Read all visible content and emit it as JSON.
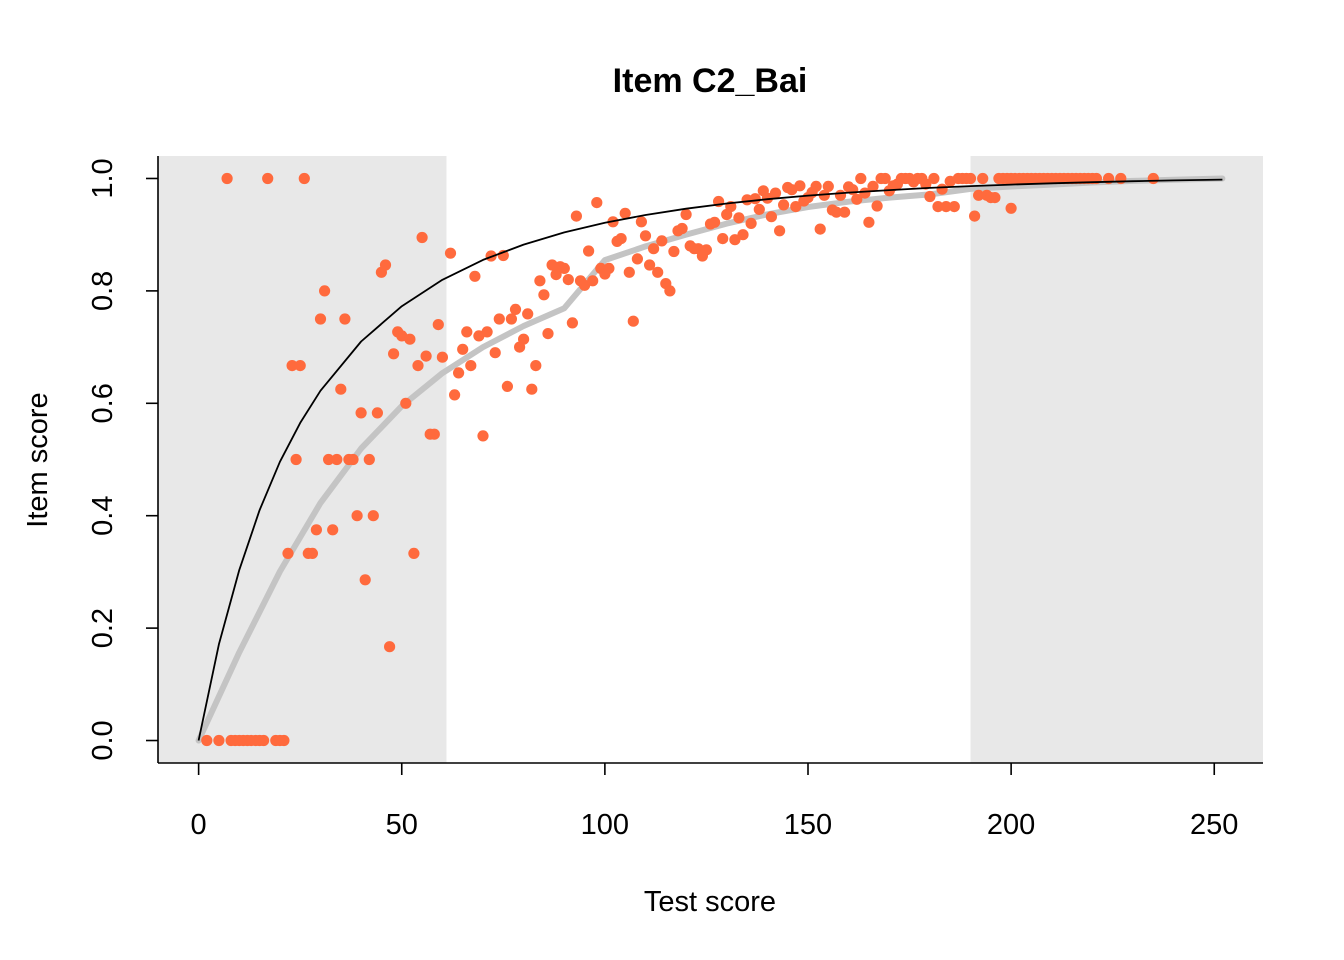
{
  "chart_data": {
    "type": "scatter",
    "title": "Item C2_Bai",
    "xlabel": "Test score",
    "ylabel": "Item score",
    "xlim": [
      -10,
      262
    ],
    "ylim": [
      -0.04,
      1.04
    ],
    "x_ticks": [
      0,
      50,
      100,
      150,
      200,
      250
    ],
    "y_ticks": [
      0.0,
      0.2,
      0.4,
      0.6,
      0.8,
      1.0
    ],
    "x_tick_labels": [
      "0",
      "50",
      "100",
      "150",
      "200",
      "250"
    ],
    "y_tick_labels": [
      "0.0",
      "0.2",
      "0.4",
      "0.6",
      "0.8",
      "1.0"
    ],
    "shaded_ranges_x": [
      [
        -10,
        61
      ],
      [
        190,
        262
      ]
    ],
    "colors": {
      "points": "#FF6A3D",
      "shade": "#E8E8E8",
      "smooth": "#C4C4C4",
      "model": "#000000"
    },
    "points": [
      [
        2,
        0
      ],
      [
        5,
        0
      ],
      [
        8,
        0
      ],
      [
        9,
        0
      ],
      [
        10,
        0
      ],
      [
        11,
        0
      ],
      [
        12,
        0
      ],
      [
        13,
        0
      ],
      [
        14,
        0
      ],
      [
        15,
        0
      ],
      [
        16,
        0
      ],
      [
        19,
        0
      ],
      [
        20,
        0
      ],
      [
        21,
        0
      ],
      [
        7,
        1
      ],
      [
        17,
        1
      ],
      [
        26,
        1
      ],
      [
        22,
        0.333
      ],
      [
        23,
        0.667
      ],
      [
        24,
        0.5
      ],
      [
        25,
        0.667
      ],
      [
        27,
        0.333
      ],
      [
        28,
        0.333
      ],
      [
        29,
        0.375
      ],
      [
        30,
        0.75
      ],
      [
        31,
        0.8
      ],
      [
        32,
        0.5
      ],
      [
        33,
        0.375
      ],
      [
        34,
        0.5
      ],
      [
        35,
        0.625
      ],
      [
        36,
        0.75
      ],
      [
        37,
        0.5
      ],
      [
        38,
        0.5
      ],
      [
        39,
        0.4
      ],
      [
        40,
        0.583
      ],
      [
        41,
        0.286
      ],
      [
        42,
        0.5
      ],
      [
        43,
        0.4
      ],
      [
        44,
        0.583
      ],
      [
        45,
        0.833
      ],
      [
        46,
        0.846
      ],
      [
        47,
        0.167
      ],
      [
        48,
        0.688
      ],
      [
        49,
        0.727
      ],
      [
        50,
        0.72
      ],
      [
        51,
        0.6
      ],
      [
        52,
        0.714
      ],
      [
        53,
        0.333
      ],
      [
        54,
        0.667
      ],
      [
        55,
        0.895
      ],
      [
        56,
        0.684
      ],
      [
        57,
        0.545
      ],
      [
        58,
        0.545
      ],
      [
        59,
        0.74
      ],
      [
        60,
        0.682
      ],
      [
        62,
        0.867
      ],
      [
        63,
        0.615
      ],
      [
        64,
        0.654
      ],
      [
        65,
        0.696
      ],
      [
        66,
        0.727
      ],
      [
        67,
        0.667
      ],
      [
        68,
        0.826
      ],
      [
        69,
        0.72
      ],
      [
        70,
        0.542
      ],
      [
        71,
        0.727
      ],
      [
        72,
        0.862
      ],
      [
        73,
        0.69
      ],
      [
        74,
        0.75
      ],
      [
        75,
        0.863
      ],
      [
        76,
        0.63
      ],
      [
        77,
        0.75
      ],
      [
        78,
        0.767
      ],
      [
        79,
        0.7
      ],
      [
        80,
        0.714
      ],
      [
        81,
        0.759
      ],
      [
        82,
        0.625
      ],
      [
        83,
        0.667
      ],
      [
        84,
        0.818
      ],
      [
        85,
        0.793
      ],
      [
        86,
        0.724
      ],
      [
        87,
        0.846
      ],
      [
        88,
        0.829
      ],
      [
        89,
        0.843
      ],
      [
        90,
        0.84
      ],
      [
        91,
        0.82
      ],
      [
        92,
        0.743
      ],
      [
        93,
        0.933
      ],
      [
        94,
        0.818
      ],
      [
        95,
        0.81
      ],
      [
        96,
        0.871
      ],
      [
        97,
        0.818
      ],
      [
        98,
        0.957
      ],
      [
        99,
        0.84
      ],
      [
        100,
        0.83
      ],
      [
        101,
        0.84
      ],
      [
        102,
        0.923
      ],
      [
        103,
        0.888
      ],
      [
        104,
        0.893
      ],
      [
        105,
        0.938
      ],
      [
        106,
        0.833
      ],
      [
        107,
        0.746
      ],
      [
        108,
        0.857
      ],
      [
        109,
        0.923
      ],
      [
        110,
        0.898
      ],
      [
        111,
        0.846
      ],
      [
        112,
        0.875
      ],
      [
        113,
        0.833
      ],
      [
        114,
        0.889
      ],
      [
        115,
        0.813
      ],
      [
        116,
        0.8
      ],
      [
        117,
        0.87
      ],
      [
        118,
        0.907
      ],
      [
        119,
        0.911
      ],
      [
        120,
        0.936
      ],
      [
        121,
        0.88
      ],
      [
        122,
        0.875
      ],
      [
        123,
        0.875
      ],
      [
        124,
        0.862
      ],
      [
        125,
        0.873
      ],
      [
        126,
        0.919
      ],
      [
        127,
        0.922
      ],
      [
        128,
        0.959
      ],
      [
        129,
        0.893
      ],
      [
        130,
        0.936
      ],
      [
        131,
        0.95
      ],
      [
        132,
        0.891
      ],
      [
        133,
        0.93
      ],
      [
        134,
        0.9
      ],
      [
        135,
        0.962
      ],
      [
        136,
        0.92
      ],
      [
        137,
        0.964
      ],
      [
        138,
        0.945
      ],
      [
        139,
        0.978
      ],
      [
        140,
        0.965
      ],
      [
        141,
        0.932
      ],
      [
        142,
        0.974
      ],
      [
        143,
        0.907
      ],
      [
        144,
        0.953
      ],
      [
        145,
        0.984
      ],
      [
        146,
        0.98
      ],
      [
        147,
        0.95
      ],
      [
        148,
        0.987
      ],
      [
        149,
        0.96
      ],
      [
        150,
        0.966
      ],
      [
        151,
        0.975
      ],
      [
        152,
        0.986
      ],
      [
        153,
        0.91
      ],
      [
        154,
        0.97
      ],
      [
        155,
        0.986
      ],
      [
        156,
        0.944
      ],
      [
        157,
        0.94
      ],
      [
        158,
        0.97
      ],
      [
        159,
        0.94
      ],
      [
        160,
        0.985
      ],
      [
        161,
        0.98
      ],
      [
        162,
        0.963
      ],
      [
        163,
        1
      ],
      [
        164,
        0.974
      ],
      [
        165,
        0.922
      ],
      [
        166,
        0.986
      ],
      [
        167,
        0.951
      ],
      [
        168,
        1
      ],
      [
        169,
        1
      ],
      [
        170,
        0.978
      ],
      [
        171,
        0.987
      ],
      [
        172,
        0.99
      ],
      [
        173,
        1
      ],
      [
        174,
        1
      ],
      [
        175,
        1
      ],
      [
        176,
        0.994
      ],
      [
        177,
        1
      ],
      [
        178,
        1
      ],
      [
        179,
        0.99
      ],
      [
        180,
        0.968
      ],
      [
        181,
        1
      ],
      [
        182,
        0.95
      ],
      [
        183,
        0.981
      ],
      [
        184,
        0.95
      ],
      [
        185,
        0.995
      ],
      [
        186,
        0.95
      ],
      [
        187,
        1
      ],
      [
        188,
        1
      ],
      [
        189,
        1
      ],
      [
        190,
        1
      ],
      [
        191,
        0.933
      ],
      [
        192,
        0.97
      ],
      [
        193,
        1
      ],
      [
        194,
        0.97
      ],
      [
        195,
        0.966
      ],
      [
        196,
        0.966
      ],
      [
        197,
        1
      ],
      [
        198,
        1
      ],
      [
        199,
        1
      ],
      [
        200,
        1
      ],
      [
        201,
        1
      ],
      [
        202,
        1
      ],
      [
        203,
        1
      ],
      [
        204,
        1
      ],
      [
        205,
        1
      ],
      [
        206,
        1
      ],
      [
        207,
        1
      ],
      [
        208,
        1
      ],
      [
        209,
        1
      ],
      [
        210,
        1
      ],
      [
        211,
        1
      ],
      [
        212,
        1
      ],
      [
        213,
        1
      ],
      [
        214,
        1
      ],
      [
        215,
        1
      ],
      [
        216,
        1
      ],
      [
        217,
        1
      ],
      [
        218,
        1
      ],
      [
        219,
        1
      ],
      [
        220,
        1
      ],
      [
        221,
        1
      ],
      [
        224,
        1
      ],
      [
        227,
        1
      ],
      [
        235,
        1
      ],
      [
        200,
        0.947
      ]
    ],
    "model_curve": {
      "type": "line",
      "x": [
        0,
        5,
        10,
        15,
        20,
        25,
        30,
        40,
        50,
        60,
        70,
        80,
        90,
        100,
        110,
        120,
        130,
        140,
        150,
        160,
        170,
        180,
        190,
        200,
        210,
        220,
        230,
        240,
        252
      ],
      "y": [
        0,
        0.1712,
        0.3035,
        0.41,
        0.4959,
        0.5651,
        0.6224,
        0.71,
        0.7727,
        0.8198,
        0.8552,
        0.8824,
        0.904,
        0.9212,
        0.935,
        0.9462,
        0.9555,
        0.9632,
        0.9696,
        0.9749,
        0.9794,
        0.9832,
        0.9864,
        0.9891,
        0.9914,
        0.9934,
        0.9951,
        0.9966,
        0.998
      ]
    },
    "smooth_curve": {
      "type": "line",
      "x": [
        0,
        10,
        20,
        30,
        40,
        50,
        60,
        70,
        80,
        90,
        100,
        110,
        120,
        130,
        140,
        150,
        160,
        170,
        180,
        190,
        200,
        210,
        220,
        230,
        240,
        252
      ],
      "y": [
        0,
        0.1569,
        0.3008,
        0.4227,
        0.5196,
        0.5951,
        0.6538,
        0.7,
        0.7375,
        0.7692,
        0.8548,
        0.8791,
        0.9001,
        0.9198,
        0.9363,
        0.9492,
        0.9587,
        0.9659,
        0.9716,
        0.9815,
        0.9858,
        0.9891,
        0.9928,
        0.9957,
        0.9978,
        1.0
      ]
    }
  }
}
